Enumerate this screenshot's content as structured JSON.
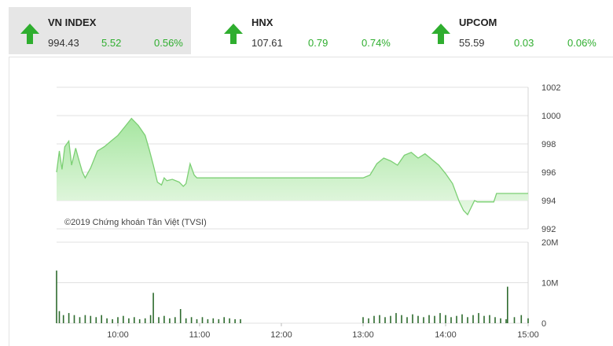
{
  "indices": [
    {
      "name": "VN INDEX",
      "value": "994.43",
      "change": "5.52",
      "percent": "0.56%",
      "direction": "up",
      "active": true
    },
    {
      "name": "HNX",
      "value": "107.61",
      "change": "0.79",
      "percent": "0.74%",
      "direction": "up",
      "active": false
    },
    {
      "name": "UPCOM",
      "value": "55.59",
      "change": "0.03",
      "percent": "0.06%",
      "direction": "up",
      "active": false
    }
  ],
  "colors": {
    "up": "#2fae2f",
    "area_fill": "#a6e6a0",
    "area_line": "#7ccf74",
    "volume_bar": "#2e6b2e",
    "grid": "#e0e0e0"
  },
  "chart_data": {
    "type": "area",
    "watermark": "©2019 Chứng khoán Tân Việt (TVSI)",
    "x_tick_labels": [
      "10:00",
      "11:00",
      "12:00",
      "13:00",
      "14:00",
      "15:00"
    ],
    "price": {
      "y_tick_labels": [
        "1002",
        "1000",
        "998",
        "996",
        "994",
        "992"
      ],
      "ylim": [
        992,
        1002
      ],
      "baseline": 994,
      "x": [
        "09:15",
        "09:17",
        "09:19",
        "09:21",
        "09:24",
        "09:26",
        "09:29",
        "09:31",
        "09:34",
        "09:36",
        "09:40",
        "09:45",
        "09:50",
        "09:55",
        "10:00",
        "10:05",
        "10:10",
        "10:15",
        "10:20",
        "10:23",
        "10:26",
        "10:29",
        "10:32",
        "10:34",
        "10:36",
        "10:40",
        "10:45",
        "10:48",
        "10:50",
        "10:53",
        "10:56",
        "10:58",
        "11:01",
        "11:04",
        "11:07",
        "11:10",
        "11:14",
        "11:17",
        "11:20",
        "11:23",
        "11:27",
        "11:30",
        "13:00",
        "13:05",
        "13:10",
        "13:15",
        "13:20",
        "13:25",
        "13:30",
        "13:35",
        "13:40",
        "13:45",
        "13:50",
        "13:55",
        "14:00",
        "14:05",
        "14:10",
        "14:13",
        "14:16",
        "14:19",
        "14:21",
        "14:23",
        "14:25",
        "14:27",
        "14:29",
        "14:31",
        "14:33",
        "14:35",
        "14:37",
        "14:39",
        "14:41",
        "14:45",
        "15:00"
      ],
      "values": [
        996.0,
        997.5,
        996.2,
        997.8,
        998.2,
        996.5,
        997.7,
        997.0,
        996.0,
        995.6,
        996.3,
        997.5,
        997.8,
        998.2,
        998.6,
        999.2,
        999.8,
        999.3,
        998.6,
        997.6,
        996.5,
        995.3,
        995.1,
        995.6,
        995.4,
        995.5,
        995.3,
        995.0,
        995.2,
        996.6,
        995.8,
        995.6,
        995.6,
        995.6,
        995.6,
        995.6,
        995.6,
        995.6,
        995.6,
        995.6,
        995.6,
        995.6,
        995.6,
        995.8,
        996.6,
        997.0,
        996.8,
        996.5,
        997.2,
        997.4,
        997.0,
        997.3,
        996.9,
        996.5,
        995.9,
        995.2,
        993.9,
        993.3,
        993.0,
        993.6,
        994.0,
        993.9,
        993.9,
        993.9,
        993.9,
        993.9,
        993.9,
        993.9,
        994.5,
        994.5,
        994.5,
        994.5,
        994.5
      ]
    },
    "volume": {
      "y_tick_labels": [
        "20M",
        "10M",
        "0"
      ],
      "ylim": [
        0,
        20
      ],
      "unit": "M",
      "x": [
        "09:15",
        "09:17",
        "09:20",
        "09:24",
        "09:28",
        "09:32",
        "09:36",
        "09:40",
        "09:44",
        "09:48",
        "09:52",
        "09:56",
        "10:00",
        "10:04",
        "10:08",
        "10:12",
        "10:16",
        "10:20",
        "10:24",
        "10:26",
        "10:30",
        "10:34",
        "10:38",
        "10:42",
        "10:46",
        "10:50",
        "10:54",
        "10:58",
        "11:02",
        "11:06",
        "11:10",
        "11:14",
        "11:18",
        "11:22",
        "11:26",
        "11:30",
        "13:00",
        "13:04",
        "13:08",
        "13:12",
        "13:16",
        "13:20",
        "13:24",
        "13:28",
        "13:32",
        "13:36",
        "13:40",
        "13:44",
        "13:48",
        "13:52",
        "13:56",
        "14:00",
        "14:04",
        "14:08",
        "14:12",
        "14:16",
        "14:20",
        "14:24",
        "14:28",
        "14:32",
        "14:36",
        "14:40",
        "14:44",
        "14:45",
        "14:50",
        "14:55",
        "15:00"
      ],
      "values": [
        13,
        3,
        2,
        2.5,
        2,
        1.5,
        2,
        1.8,
        1.5,
        2,
        1.2,
        1,
        1.5,
        1.8,
        1.2,
        1.5,
        1,
        1.2,
        2,
        7.5,
        1.5,
        1.8,
        1.2,
        1.5,
        3.5,
        1.2,
        1.5,
        1,
        1.5,
        1,
        1.2,
        1,
        1.5,
        1.2,
        1,
        1,
        1.5,
        1.2,
        1.8,
        2,
        1.5,
        1.8,
        2.5,
        2,
        1.5,
        2.2,
        1.8,
        1.5,
        2,
        1.8,
        2.5,
        2,
        1.5,
        1.8,
        2.2,
        1.5,
        2,
        2.5,
        1.8,
        2,
        1.5,
        1.2,
        1,
        9,
        1.5,
        2,
        1.2
      ]
    }
  }
}
